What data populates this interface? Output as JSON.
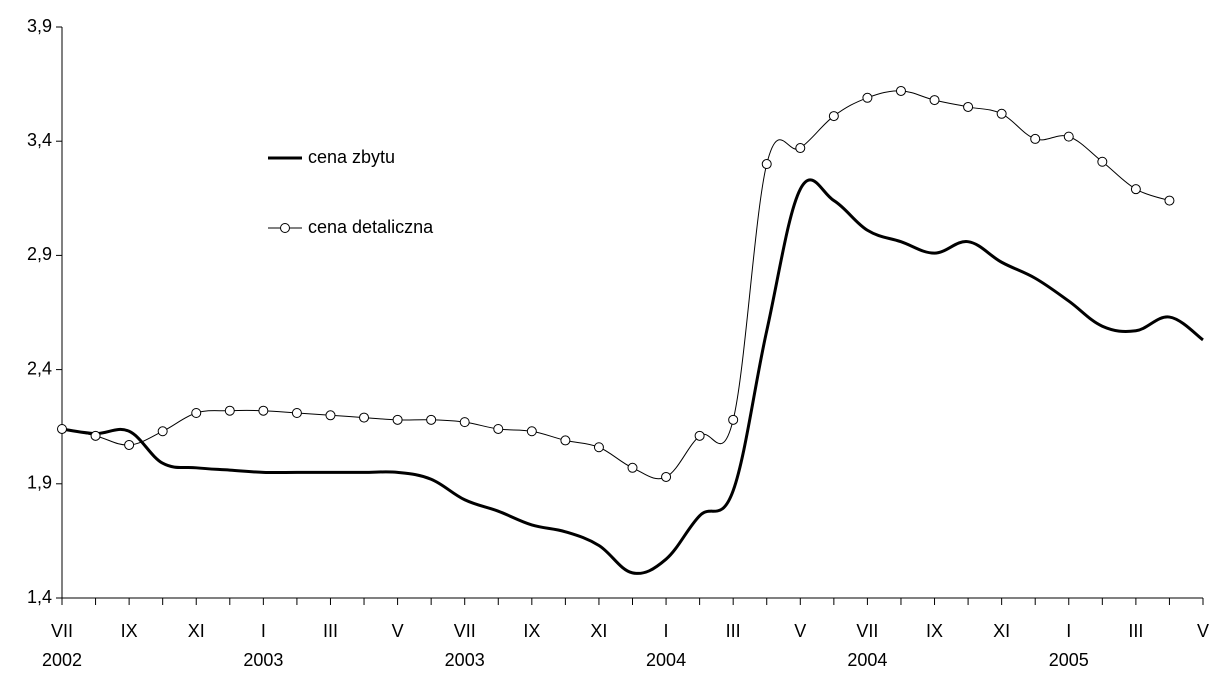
{
  "chart_data": {
    "type": "line",
    "categories": [
      "VII",
      null,
      "IX",
      null,
      "XI",
      null,
      "I",
      null,
      "III",
      null,
      "V",
      null,
      "VII",
      null,
      "IX",
      null,
      "XI",
      null,
      "I",
      null,
      "III",
      null,
      "V",
      null,
      "VII",
      null,
      "IX",
      null,
      "XI",
      null,
      "I",
      null,
      "III",
      null,
      "V"
    ],
    "category_years": [
      "2002",
      null,
      null,
      null,
      null,
      null,
      "2003",
      null,
      null,
      null,
      null,
      null,
      "2003",
      null,
      null,
      null,
      null,
      null,
      "2004",
      null,
      null,
      null,
      null,
      null,
      "2004",
      null,
      null,
      null,
      null,
      null,
      "2005",
      null,
      null,
      null,
      null
    ],
    "series": [
      {
        "name": "cena zbytu",
        "color": "#000000",
        "markers": false,
        "values": [
          2.14,
          2.12,
          2.13,
          1.99,
          1.97,
          1.96,
          1.95,
          1.95,
          1.95,
          1.95,
          1.95,
          1.92,
          1.83,
          1.78,
          1.72,
          1.69,
          1.63,
          1.51,
          1.57,
          1.76,
          1.87,
          2.57,
          3.19,
          3.14,
          3.01,
          2.96,
          2.91,
          2.96,
          2.87,
          2.8,
          2.7,
          2.59,
          2.57,
          2.63,
          2.53
        ]
      },
      {
        "name": "cena detaliczna",
        "color": "#000000",
        "markers": true,
        "values": [
          2.14,
          2.11,
          2.07,
          2.13,
          2.21,
          2.22,
          2.22,
          2.21,
          2.2,
          2.19,
          2.18,
          2.18,
          2.17,
          2.14,
          2.13,
          2.09,
          2.06,
          1.97,
          1.93,
          2.11,
          2.18,
          3.3,
          3.37,
          3.51,
          3.59,
          3.62,
          3.58,
          3.55,
          3.52,
          3.41,
          3.42,
          3.31,
          3.19,
          3.14,
          null
        ]
      }
    ],
    "ylim": [
      1.4,
      3.9
    ],
    "yticks": [
      {
        "value": 1.4,
        "label": "1,4"
      },
      {
        "value": 1.9,
        "label": "1,9"
      },
      {
        "value": 2.4,
        "label": "2,4"
      },
      {
        "value": 2.9,
        "label": "2,9"
      },
      {
        "value": 3.4,
        "label": "3,4"
      },
      {
        "value": 3.9,
        "label": "3,9"
      }
    ],
    "grid": false
  }
}
